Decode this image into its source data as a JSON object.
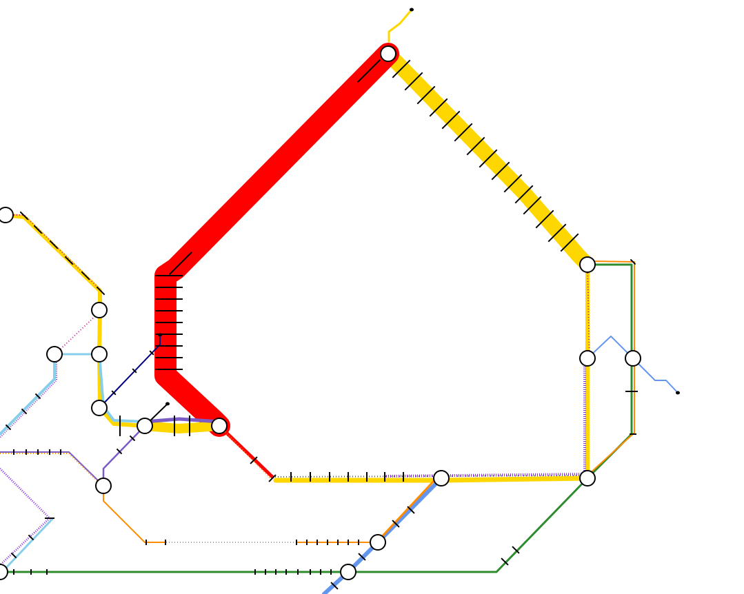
{
  "map": {
    "kind": "transit-line-schematic",
    "background": "#ffffff",
    "lines": [
      {
        "id": "red",
        "color": "#ff0000",
        "style": "solid",
        "relative_weight": "heavy"
      },
      {
        "id": "yellow",
        "color": "#ffd700",
        "style": "solid",
        "relative_weight": "medium"
      },
      {
        "id": "green",
        "color": "#2e8b2e",
        "style": "solid",
        "relative_weight": "light"
      },
      {
        "id": "orange",
        "color": "#ff8c00",
        "style": "solid",
        "relative_weight": "light"
      },
      {
        "id": "light-blue",
        "color": "#87ceeb",
        "style": "solid",
        "relative_weight": "light"
      },
      {
        "id": "steel-blue",
        "color": "#6495ed",
        "style": "solid",
        "relative_weight": "medium"
      },
      {
        "id": "navy",
        "color": "#000080",
        "style": "solid",
        "relative_weight": "thin"
      },
      {
        "id": "purple",
        "color": "#7b5cc6",
        "style": "solid",
        "relative_weight": "light"
      },
      {
        "id": "purple-dotted",
        "color": "#8a2be2",
        "style": "dotted",
        "relative_weight": "thin"
      },
      {
        "id": "crimson-dotted",
        "color": "#c71585",
        "style": "dotted",
        "relative_weight": "thin"
      },
      {
        "id": "orange-dotted",
        "color": "#ff8c00",
        "style": "dotted",
        "relative_weight": "thin"
      }
    ],
    "stations": {
      "interchange_marker": "white-circle-black-outline",
      "count": 17
    },
    "labels": []
  }
}
